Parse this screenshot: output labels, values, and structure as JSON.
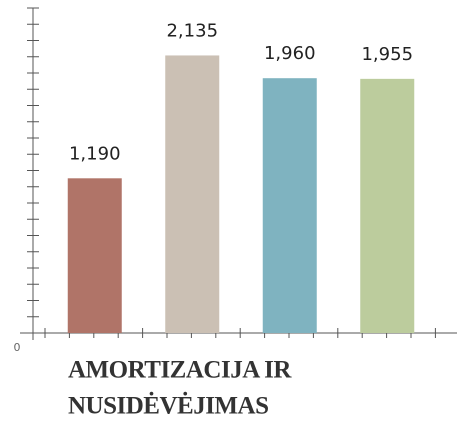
{
  "chart_data": {
    "type": "bar",
    "title": [
      "AMORTIZACIJA IR",
      "NUSIDĖVĖJIMAS"
    ],
    "values": [
      1190,
      2135,
      1960,
      1955
    ],
    "value_labels": [
      "1,190",
      "2,135",
      "1,960",
      "1,955"
    ],
    "colors": [
      "#b07468",
      "#cbc0b4",
      "#7fb3c0",
      "#bccc9d"
    ],
    "ylim": [
      0,
      2500
    ],
    "yticks": [
      0
    ],
    "minor_yticks": [
      0,
      125,
      250,
      375,
      500,
      625,
      750,
      875,
      1000,
      1125,
      1250,
      1375,
      1500,
      1625,
      1750,
      1875,
      2000,
      2125,
      2250,
      2375,
      2500
    ]
  }
}
